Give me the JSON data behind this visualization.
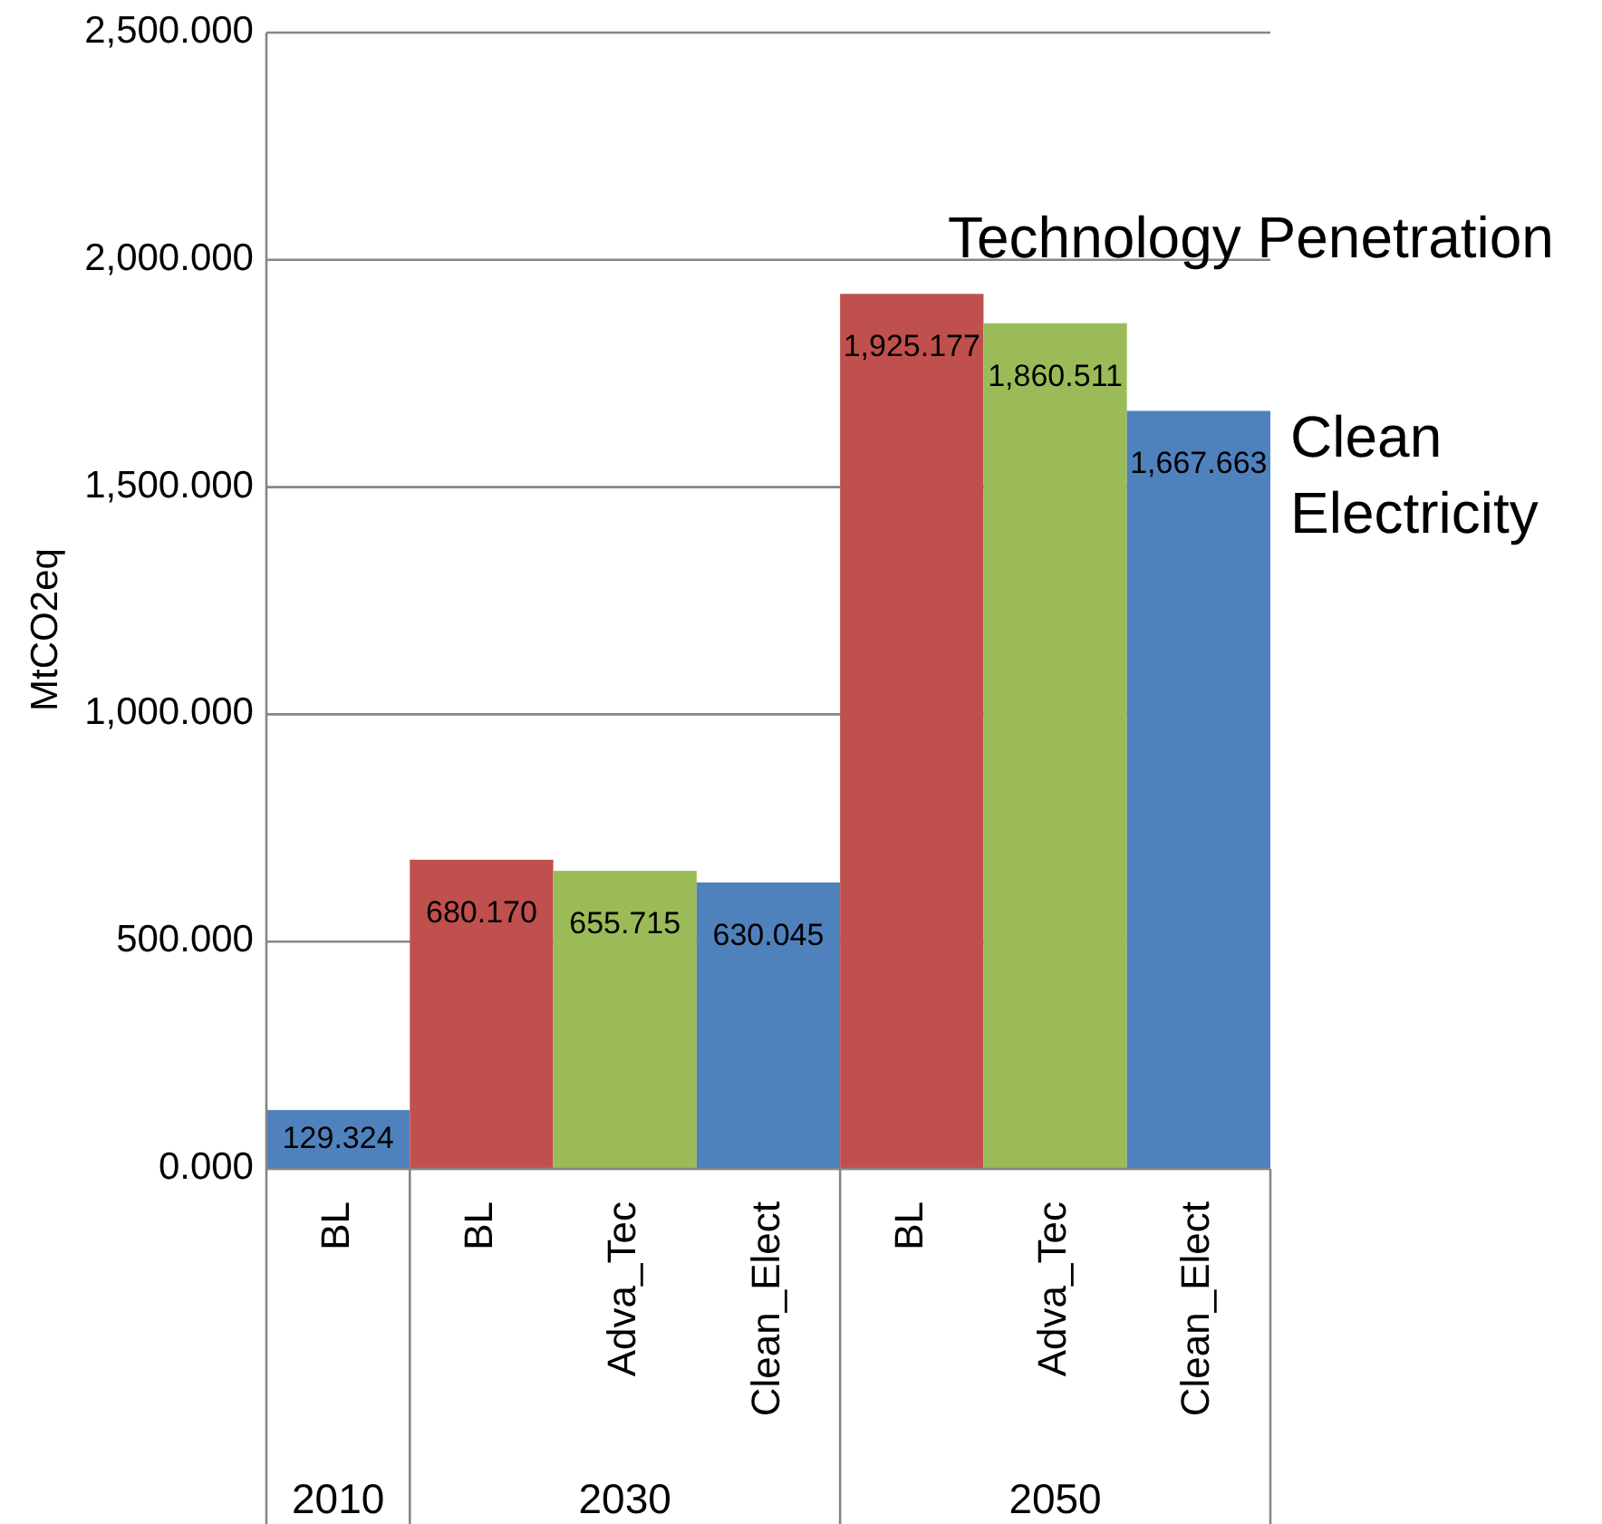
{
  "chart_data": {
    "type": "bar",
    "ylabel": "MtCO2eq",
    "categories": [
      "BL",
      "BL",
      "Adva_Tec",
      "Clean_Elect",
      "BL",
      "Adva_Tec",
      "Clean_Elect"
    ],
    "values": [
      129.324,
      680.17,
      655.715,
      630.045,
      1925.177,
      1860.511,
      1667.663
    ],
    "colors": [
      "#4f81bd",
      "#c0504d",
      "#9bbb59",
      "#4f81bd",
      "#c0504d",
      "#9bbb59",
      "#4f81bd"
    ],
    "value_labels": [
      "129.324",
      "680.170",
      "655.715",
      "630.045",
      "1,925.177",
      "1,860.511",
      "1,667.663"
    ],
    "ylim": [
      0,
      2500
    ],
    "yticks": [
      {
        "value": 0,
        "label": "0.000"
      },
      {
        "value": 500,
        "label": "500.000"
      },
      {
        "value": 1000,
        "label": "1,000.000"
      },
      {
        "value": 1500,
        "label": "1,500.000"
      },
      {
        "value": 2000,
        "label": "2,000.000"
      },
      {
        "value": 2500,
        "label": "2,500.000"
      }
    ],
    "grid": "y",
    "annotations": [
      "Technology Penetration",
      "Clean Electricity",
      "2010",
      "2030",
      "2050"
    ]
  }
}
